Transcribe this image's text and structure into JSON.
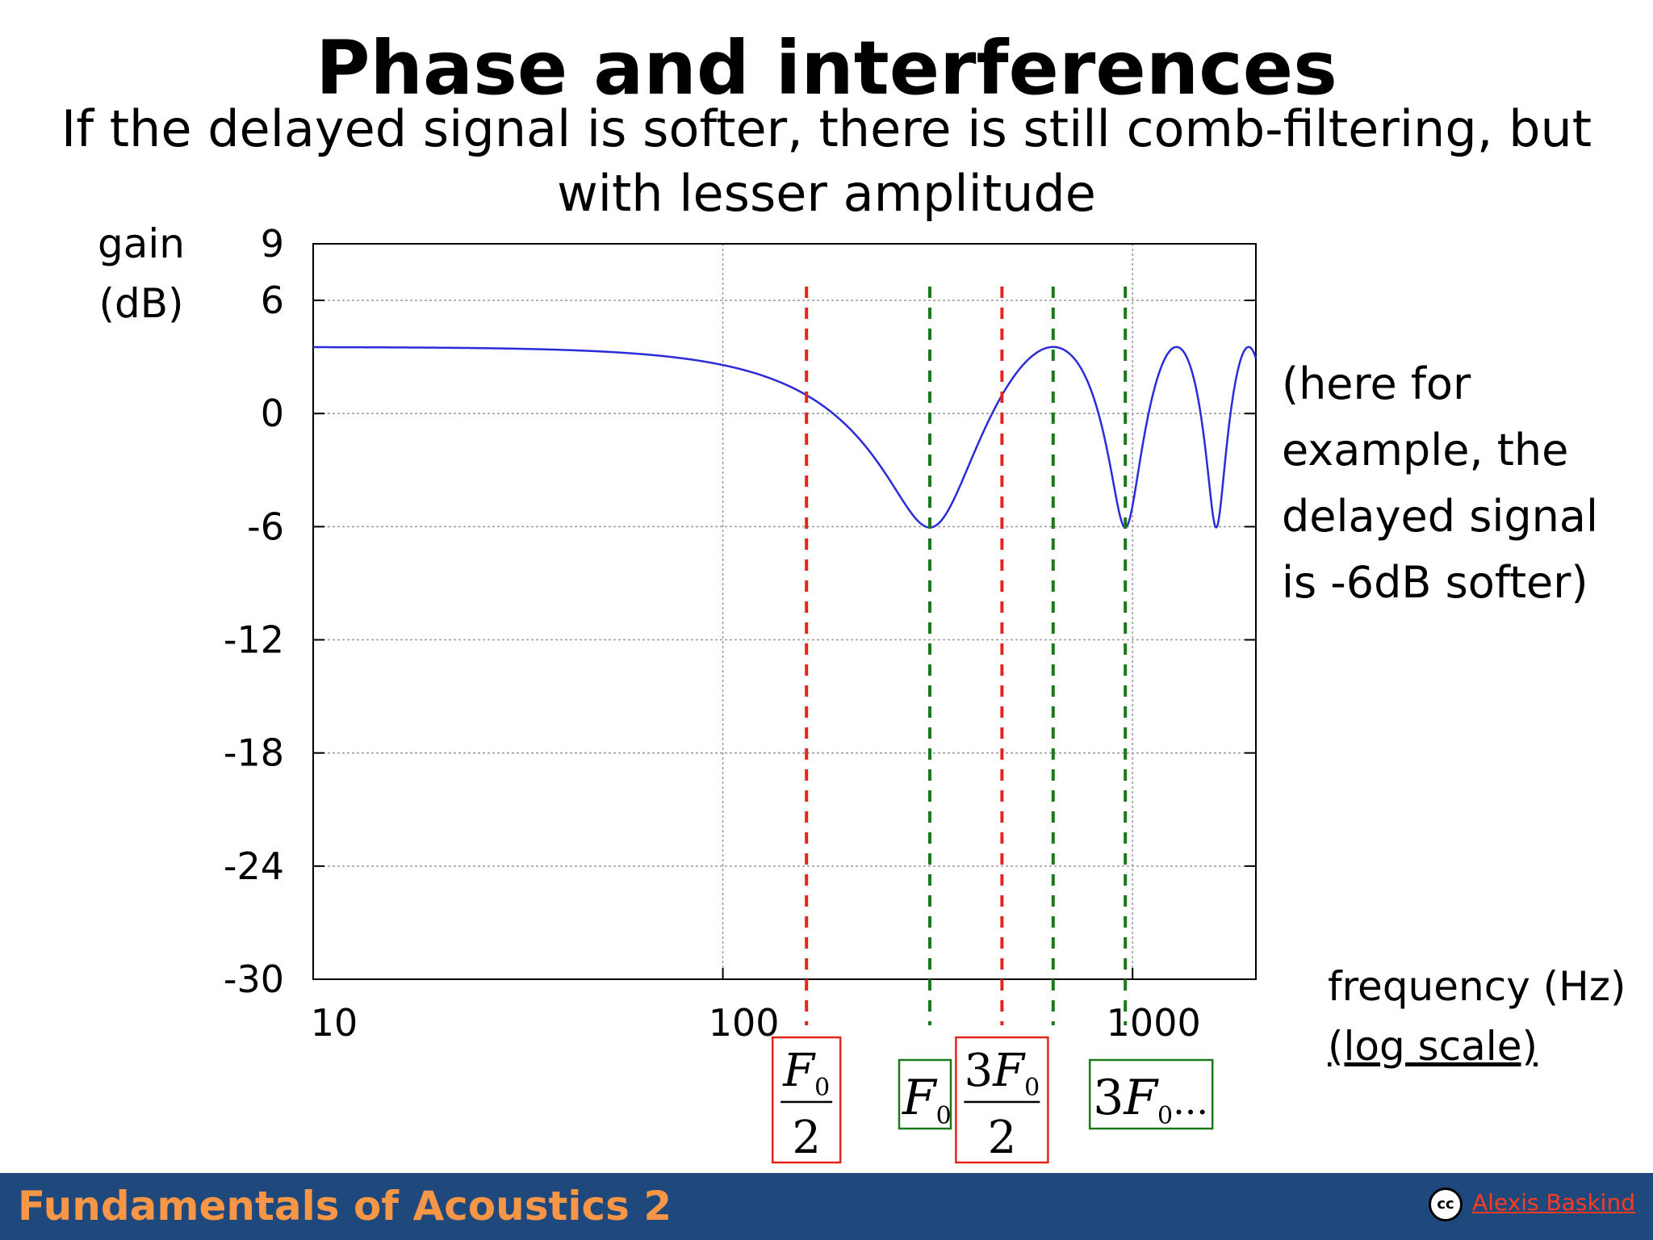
{
  "slide": {
    "title": "Phase and interferences",
    "subtitle": "If the delayed signal is softer, there is still comb-filtering, but with lesser amplitude",
    "ylabel_line1": "gain",
    "ylabel_line2": "(dB)",
    "note_lines": [
      "(here for",
      "example, the",
      "delayed signal",
      "is -6dB softer)"
    ],
    "xlabel_line1": "frequency (Hz)",
    "xlabel_line2": "(log scale)"
  },
  "chart_data": {
    "type": "line",
    "xscale": "log",
    "xlim": [
      10,
      2000
    ],
    "ylim": [
      -30,
      9
    ],
    "grid": true,
    "y_ticks": [
      9,
      6,
      0,
      -6,
      -12,
      -18,
      -24,
      -30
    ],
    "x_ticks": [
      10,
      100,
      1000
    ],
    "x_tick_labels": [
      "10",
      "100",
      "1000"
    ],
    "series": [
      {
        "color": "#2b2bd9",
        "model": "comb_filter",
        "delayed_gain_db": -6,
        "f0_hz": 320,
        "max_db": 3.52,
        "min_db": -6.02
      }
    ],
    "annotations": [
      {
        "x": 160,
        "color": "#e8231b",
        "label_kind": "frac",
        "num": "F",
        "num_sub": "0",
        "den": "2",
        "num_coef": ""
      },
      {
        "x": 320,
        "color": "#1a7a1a",
        "label_kind": "plain",
        "coef": "",
        "text": "F",
        "sub": "0",
        "suffix": ""
      },
      {
        "x": 480,
        "color": "#e8231b",
        "label_kind": "frac",
        "num": "F",
        "num_sub": "0",
        "den": "2",
        "num_coef": "3"
      },
      {
        "x": 640,
        "color": "#1a7a1a",
        "label_kind": "none"
      },
      {
        "x": 960,
        "color": "#1a7a1a",
        "label_kind": "plain",
        "coef": "3",
        "text": "F",
        "sub": "0",
        "suffix": "..."
      }
    ]
  },
  "footer": {
    "course_title": "Fundamentals of Acoustics 2",
    "license_icon": "creative-commons-icon",
    "license_icon_text": "cc",
    "author": "Alexis Baskind"
  }
}
